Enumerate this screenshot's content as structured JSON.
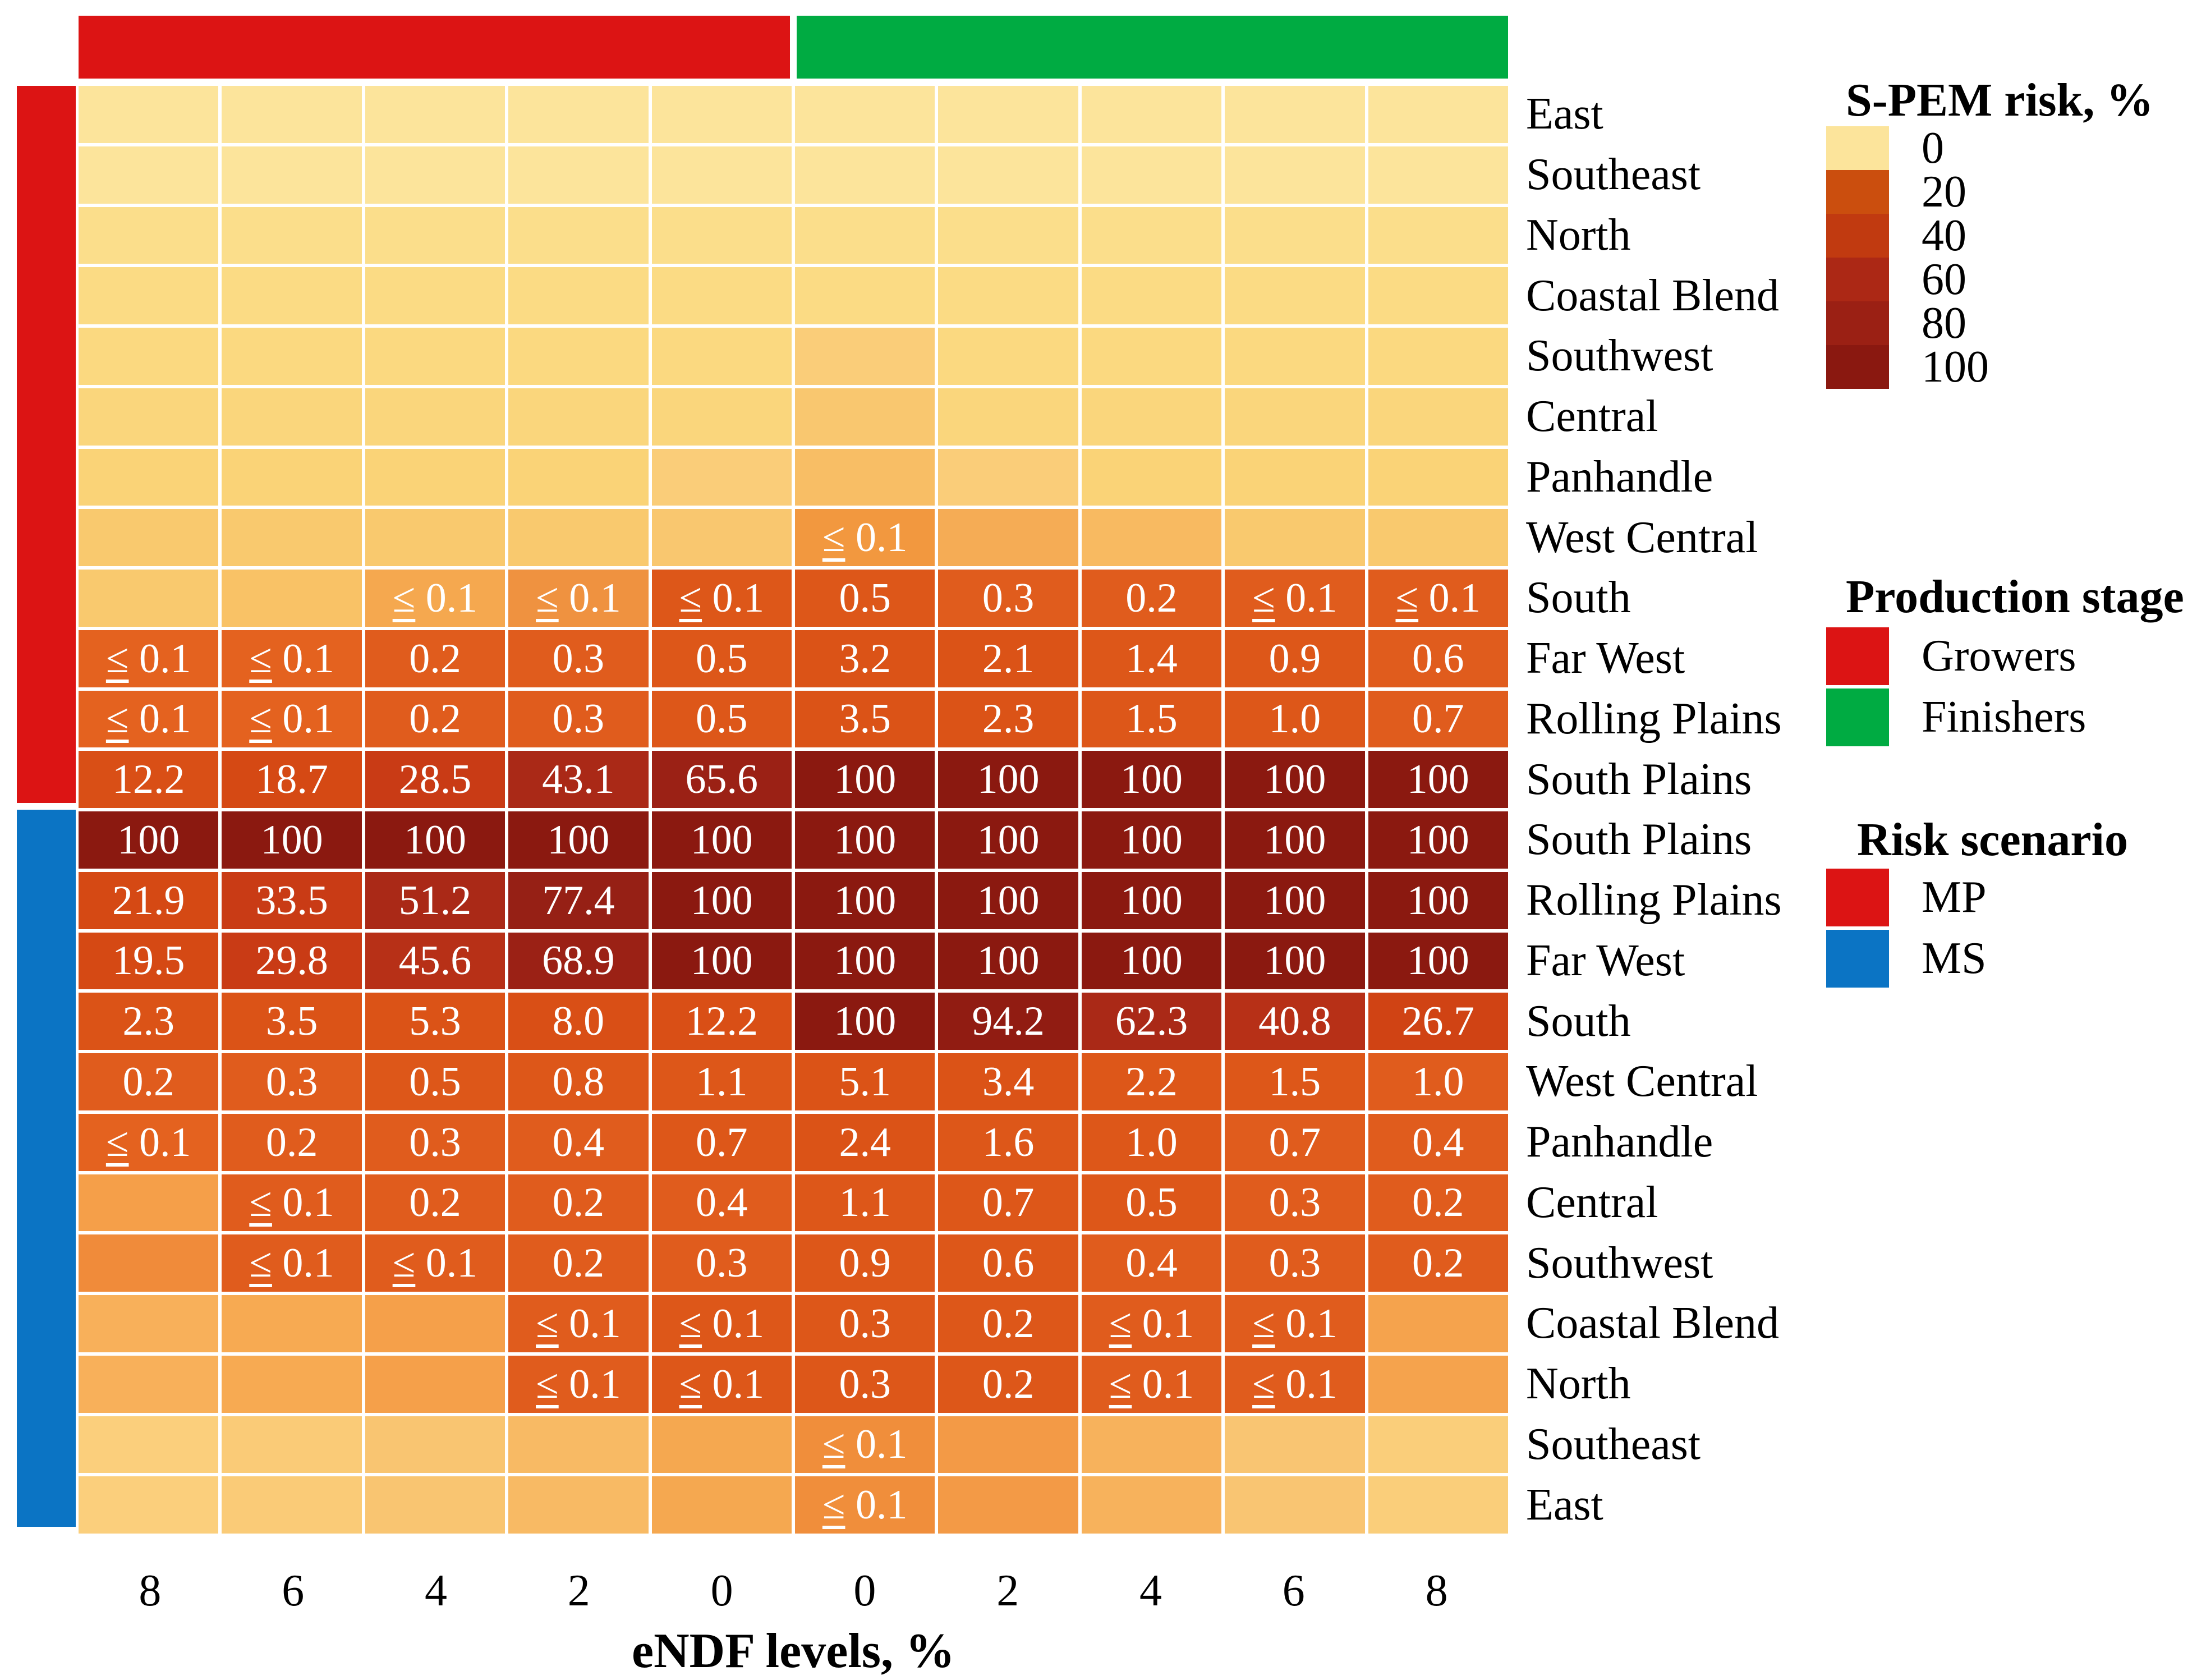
{
  "axis": {
    "title": "eNDF levels, %",
    "tick_labels": [
      "8",
      "6",
      "4",
      "2",
      "0",
      "0",
      "2",
      "4",
      "6",
      "8"
    ]
  },
  "legends": {
    "risk": {
      "title": "S-PEM risk, %",
      "entries": [
        {
          "label": "0",
          "color": "#FCE49B"
        },
        {
          "label": "20",
          "color": "#CB4E0E"
        },
        {
          "label": "40",
          "color": "#C13A10"
        },
        {
          "label": "60",
          "color": "#AC2815"
        },
        {
          "label": "80",
          "color": "#9B2014"
        },
        {
          "label": "100",
          "color": "#8A1810"
        }
      ]
    },
    "stage": {
      "title": "Production stage",
      "entries": [
        {
          "label": "Growers",
          "color": "#DC1414"
        },
        {
          "label": "Finishers",
          "color": "#00AB42"
        }
      ]
    },
    "scenario": {
      "title": "Risk scenario",
      "entries": [
        {
          "label": "MP",
          "color": "#DC1414"
        },
        {
          "label": "MS",
          "color": "#0B74C4"
        }
      ]
    }
  },
  "chart_data": {
    "type": "heatmap",
    "xlabel": "eNDF levels, %",
    "x_ticks": [
      "8",
      "6",
      "4",
      "2",
      "0",
      "0",
      "2",
      "4",
      "6",
      "8"
    ],
    "column_groups": [
      {
        "label": "Growers",
        "color": "#DC1414",
        "columns": "1-5"
      },
      {
        "label": "Finishers",
        "color": "#00AB42",
        "columns": "6-10"
      }
    ],
    "row_groups": [
      {
        "label": "MP",
        "color": "#DC1414",
        "rows": "1-12"
      },
      {
        "label": "MS",
        "color": "#0B74C4",
        "rows": "13-24"
      }
    ],
    "palette": {
      "y1": "#FCE49B",
      "y2": "#FBDE8B",
      "y3": "#FBDB84",
      "y4": "#FBD980",
      "y5": "#FAD67C",
      "y6": "#FAD377",
      "y7": "#F9C96E",
      "y8": "#F9C266",
      "o1": "#FACD79",
      "o2": "#F9C76F",
      "o3": "#F8BE65",
      "o4": "#F5AC55",
      "o5": "#F8BA61",
      "o6": "#F2983F",
      "o7": "#F5A84F",
      "o8": "#EF9240",
      "o9": "#F59F49",
      "o10": "#F08B3A",
      "cb1": "#F8B05A",
      "cb2": "#F7AA52",
      "cb3": "#F5A04A",
      "cb4": "#F5A34D",
      "e1": "#FBCF7C",
      "e2": "#FACB77",
      "e3": "#F9C571",
      "e4": "#F8BA64",
      "e5": "#F5A850",
      "e6": "#F08E3B",
      "e7": "#F39A46",
      "e8": "#F7B25C",
      "e9": "#F9C572",
      "e10": "#FACE7A",
      "d0": "#E4621F",
      "d1": "#E05C1D",
      "d2": "#DD5719",
      "d3": "#DB5317",
      "d4": "#D94F16",
      "d5": "#D54914",
      "d6": "#D04314",
      "d7": "#C93B15",
      "d8": "#B73017",
      "d9": "#AA2917",
      "d10": "#9B2115",
      "d11": "#962015",
      "d12": "#911C12",
      "d13": "#8B1910"
    },
    "rows": [
      {
        "label": "East",
        "scenario": "MP",
        "cells": [
          [
            "",
            "y1"
          ],
          [
            "",
            "y1"
          ],
          [
            "",
            "y1"
          ],
          [
            "",
            "y1"
          ],
          [
            "",
            "y1"
          ],
          [
            "",
            "y1"
          ],
          [
            "",
            "y1"
          ],
          [
            "",
            "y1"
          ],
          [
            "",
            "y1"
          ],
          [
            "",
            "y1"
          ]
        ]
      },
      {
        "label": "Southeast",
        "scenario": "MP",
        "cells": [
          [
            "",
            "y1"
          ],
          [
            "",
            "y1"
          ],
          [
            "",
            "y1"
          ],
          [
            "",
            "y1"
          ],
          [
            "",
            "y1"
          ],
          [
            "",
            "y1"
          ],
          [
            "",
            "y1"
          ],
          [
            "",
            "y1"
          ],
          [
            "",
            "y1"
          ],
          [
            "",
            "y1"
          ]
        ]
      },
      {
        "label": "North",
        "scenario": "MP",
        "cells": [
          [
            "",
            "y2"
          ],
          [
            "",
            "y2"
          ],
          [
            "",
            "y2"
          ],
          [
            "",
            "y2"
          ],
          [
            "",
            "y2"
          ],
          [
            "",
            "y2"
          ],
          [
            "",
            "y2"
          ],
          [
            "",
            "y2"
          ],
          [
            "",
            "y2"
          ],
          [
            "",
            "y2"
          ]
        ]
      },
      {
        "label": "Coastal Blend",
        "scenario": "MP",
        "cells": [
          [
            "",
            "y3"
          ],
          [
            "",
            "y3"
          ],
          [
            "",
            "y3"
          ],
          [
            "",
            "y3"
          ],
          [
            "",
            "y3"
          ],
          [
            "",
            "y3"
          ],
          [
            "",
            "y3"
          ],
          [
            "",
            "y3"
          ],
          [
            "",
            "y3"
          ],
          [
            "",
            "y3"
          ]
        ]
      },
      {
        "label": "Southwest",
        "scenario": "MP",
        "cells": [
          [
            "",
            "y4"
          ],
          [
            "",
            "y4"
          ],
          [
            "",
            "y4"
          ],
          [
            "",
            "y4"
          ],
          [
            "",
            "y4"
          ],
          [
            "",
            "o1"
          ],
          [
            "",
            "y4"
          ],
          [
            "",
            "y4"
          ],
          [
            "",
            "y4"
          ],
          [
            "",
            "y4"
          ]
        ]
      },
      {
        "label": "Central",
        "scenario": "MP",
        "cells": [
          [
            "",
            "y5"
          ],
          [
            "",
            "y5"
          ],
          [
            "",
            "y5"
          ],
          [
            "",
            "y5"
          ],
          [
            "",
            "y5"
          ],
          [
            "",
            "o2"
          ],
          [
            "",
            "y5"
          ],
          [
            "",
            "y5"
          ],
          [
            "",
            "y5"
          ],
          [
            "",
            "y5"
          ]
        ]
      },
      {
        "label": "Panhandle",
        "scenario": "MP",
        "cells": [
          [
            "",
            "y6"
          ],
          [
            "",
            "y6"
          ],
          [
            "",
            "y6"
          ],
          [
            "",
            "y6"
          ],
          [
            "",
            "o1"
          ],
          [
            "",
            "o3"
          ],
          [
            "",
            "o1"
          ],
          [
            "",
            "y6"
          ],
          [
            "",
            "y6"
          ],
          [
            "",
            "y6"
          ]
        ]
      },
      {
        "label": "West Central",
        "scenario": "MP",
        "cells": [
          [
            "",
            "y7"
          ],
          [
            "",
            "y7"
          ],
          [
            "",
            "y7"
          ],
          [
            "",
            "y7"
          ],
          [
            "",
            "o2"
          ],
          [
            "≤ 0.1",
            "o6"
          ],
          [
            "",
            "o4"
          ],
          [
            "",
            "o5"
          ],
          [
            "",
            "y7"
          ],
          [
            "",
            "y7"
          ]
        ]
      },
      {
        "label": "South",
        "scenario": "MP",
        "cells": [
          [
            "",
            "y7"
          ],
          [
            "",
            "y8"
          ],
          [
            "≤ 0.1",
            "o7"
          ],
          [
            "≤ 0.1",
            "o8"
          ],
          [
            "≤ 0.1",
            "d2"
          ],
          [
            "0.5",
            "d2"
          ],
          [
            "0.3",
            "d1"
          ],
          [
            "0.2",
            "d1"
          ],
          [
            "≤ 0.1",
            "d1"
          ],
          [
            "≤ 0.1",
            "d1"
          ]
        ]
      },
      {
        "label": "Far West",
        "scenario": "MP",
        "cells": [
          [
            "≤ 0.1",
            "d0"
          ],
          [
            "≤ 0.1",
            "d0"
          ],
          [
            "0.2",
            "d1"
          ],
          [
            "0.3",
            "d1"
          ],
          [
            "0.5",
            "d2"
          ],
          [
            "3.2",
            "d3"
          ],
          [
            "2.1",
            "d3"
          ],
          [
            "1.4",
            "d2"
          ],
          [
            "0.9",
            "d2"
          ],
          [
            "0.6",
            "d1"
          ]
        ]
      },
      {
        "label": "Rolling Plains",
        "scenario": "MP",
        "cells": [
          [
            "≤ 0.1",
            "d0"
          ],
          [
            "≤ 0.1",
            "d0"
          ],
          [
            "0.2",
            "d1"
          ],
          [
            "0.3",
            "d1"
          ],
          [
            "0.5",
            "d2"
          ],
          [
            "3.5",
            "d3"
          ],
          [
            "2.3",
            "d3"
          ],
          [
            "1.5",
            "d2"
          ],
          [
            "1.0",
            "d2"
          ],
          [
            "0.7",
            "d1"
          ]
        ]
      },
      {
        "label": "South Plains",
        "scenario": "MP",
        "cells": [
          [
            "12.2",
            "d4"
          ],
          [
            "18.7",
            "d5"
          ],
          [
            "28.5",
            "d7"
          ],
          [
            "43.1",
            "d9"
          ],
          [
            "65.6",
            "d10"
          ],
          [
            "100",
            "d13"
          ],
          [
            "100",
            "d13"
          ],
          [
            "100",
            "d13"
          ],
          [
            "100",
            "d13"
          ],
          [
            "100",
            "d13"
          ]
        ]
      },
      {
        "label": "South Plains",
        "scenario": "MS",
        "cells": [
          [
            "100",
            "d13"
          ],
          [
            "100",
            "d13"
          ],
          [
            "100",
            "d13"
          ],
          [
            "100",
            "d13"
          ],
          [
            "100",
            "d13"
          ],
          [
            "100",
            "d13"
          ],
          [
            "100",
            "d13"
          ],
          [
            "100",
            "d13"
          ],
          [
            "100",
            "d13"
          ],
          [
            "100",
            "d13"
          ]
        ]
      },
      {
        "label": "Rolling Plains",
        "scenario": "MS",
        "cells": [
          [
            "21.9",
            "d5"
          ],
          [
            "33.5",
            "d7"
          ],
          [
            "51.2",
            "d9"
          ],
          [
            "77.4",
            "d11"
          ],
          [
            "100",
            "d13"
          ],
          [
            "100",
            "d13"
          ],
          [
            "100",
            "d13"
          ],
          [
            "100",
            "d13"
          ],
          [
            "100",
            "d13"
          ],
          [
            "100",
            "d13"
          ]
        ]
      },
      {
        "label": "Far West",
        "scenario": "MS",
        "cells": [
          [
            "19.5",
            "d5"
          ],
          [
            "29.8",
            "d7"
          ],
          [
            "45.6",
            "d8"
          ],
          [
            "68.9",
            "d10"
          ],
          [
            "100",
            "d13"
          ],
          [
            "100",
            "d13"
          ],
          [
            "100",
            "d13"
          ],
          [
            "100",
            "d13"
          ],
          [
            "100",
            "d13"
          ],
          [
            "100",
            "d13"
          ]
        ]
      },
      {
        "label": "South",
        "scenario": "MS",
        "cells": [
          [
            "2.3",
            "d3"
          ],
          [
            "3.5",
            "d3"
          ],
          [
            "5.3",
            "d3"
          ],
          [
            "8.0",
            "d4"
          ],
          [
            "12.2",
            "d4"
          ],
          [
            "100",
            "d13"
          ],
          [
            "94.2",
            "d12"
          ],
          [
            "62.3",
            "d9"
          ],
          [
            "40.8",
            "d8"
          ],
          [
            "26.7",
            "d6"
          ]
        ]
      },
      {
        "label": "West Central",
        "scenario": "MS",
        "cells": [
          [
            "0.2",
            "d1"
          ],
          [
            "0.3",
            "d1"
          ],
          [
            "0.5",
            "d2"
          ],
          [
            "0.8",
            "d2"
          ],
          [
            "1.1",
            "d2"
          ],
          [
            "5.1",
            "d3"
          ],
          [
            "3.4",
            "d3"
          ],
          [
            "2.2",
            "d2"
          ],
          [
            "1.5",
            "d2"
          ],
          [
            "1.0",
            "d1"
          ]
        ]
      },
      {
        "label": "Panhandle",
        "scenario": "MS",
        "cells": [
          [
            "≤ 0.1",
            "d0"
          ],
          [
            "0.2",
            "d1"
          ],
          [
            "0.3",
            "d1"
          ],
          [
            "0.4",
            "d1"
          ],
          [
            "0.7",
            "d2"
          ],
          [
            "2.4",
            "d3"
          ],
          [
            "1.6",
            "d2"
          ],
          [
            "1.0",
            "d2"
          ],
          [
            "0.7",
            "d1"
          ],
          [
            "0.4",
            "d1"
          ]
        ]
      },
      {
        "label": "Central",
        "scenario": "MS",
        "cells": [
          [
            "",
            "o9"
          ],
          [
            "≤ 0.1",
            "d1"
          ],
          [
            "0.2",
            "d1"
          ],
          [
            "0.2",
            "d1"
          ],
          [
            "0.4",
            "d1"
          ],
          [
            "1.1",
            "d2"
          ],
          [
            "0.7",
            "d2"
          ],
          [
            "0.5",
            "d2"
          ],
          [
            "0.3",
            "d1"
          ],
          [
            "0.2",
            "d1"
          ]
        ]
      },
      {
        "label": "Southwest",
        "scenario": "MS",
        "cells": [
          [
            "",
            "o10"
          ],
          [
            "≤ 0.1",
            "d1"
          ],
          [
            "≤ 0.1",
            "d1"
          ],
          [
            "0.2",
            "d1"
          ],
          [
            "0.3",
            "d1"
          ],
          [
            "0.9",
            "d2"
          ],
          [
            "0.6",
            "d2"
          ],
          [
            "0.4",
            "d1"
          ],
          [
            "0.3",
            "d1"
          ],
          [
            "0.2",
            "d1"
          ]
        ]
      },
      {
        "label": "Coastal Blend",
        "scenario": "MS",
        "cells": [
          [
            "",
            "cb1"
          ],
          [
            "",
            "cb2"
          ],
          [
            "",
            "cb3"
          ],
          [
            "≤ 0.1",
            "d1"
          ],
          [
            "≤ 0.1",
            "d2"
          ],
          [
            "0.3",
            "d2"
          ],
          [
            "0.2",
            "d2"
          ],
          [
            "≤ 0.1",
            "d1"
          ],
          [
            "≤ 0.1",
            "d1"
          ],
          [
            "",
            "cb4"
          ]
        ]
      },
      {
        "label": "North",
        "scenario": "MS",
        "cells": [
          [
            "",
            "cb1"
          ],
          [
            "",
            "cb2"
          ],
          [
            "",
            "cb3"
          ],
          [
            "≤ 0.1",
            "d1"
          ],
          [
            "≤ 0.1",
            "d2"
          ],
          [
            "0.3",
            "d2"
          ],
          [
            "0.2",
            "d2"
          ],
          [
            "≤ 0.1",
            "d1"
          ],
          [
            "≤ 0.1",
            "d1"
          ],
          [
            "",
            "cb4"
          ]
        ]
      },
      {
        "label": "Southeast",
        "scenario": "MS",
        "cells": [
          [
            "",
            "e1"
          ],
          [
            "",
            "e2"
          ],
          [
            "",
            "e3"
          ],
          [
            "",
            "e4"
          ],
          [
            "",
            "e5"
          ],
          [
            "≤ 0.1",
            "e6"
          ],
          [
            "",
            "e7"
          ],
          [
            "",
            "e8"
          ],
          [
            "",
            "e9"
          ],
          [
            "",
            "e10"
          ]
        ]
      },
      {
        "label": "East",
        "scenario": "MS",
        "cells": [
          [
            "",
            "e1"
          ],
          [
            "",
            "e2"
          ],
          [
            "",
            "e3"
          ],
          [
            "",
            "e4"
          ],
          [
            "",
            "e5"
          ],
          [
            "≤ 0.1",
            "e6"
          ],
          [
            "",
            "e7"
          ],
          [
            "",
            "e8"
          ],
          [
            "",
            "e9"
          ],
          [
            "",
            "e10"
          ]
        ]
      }
    ]
  }
}
